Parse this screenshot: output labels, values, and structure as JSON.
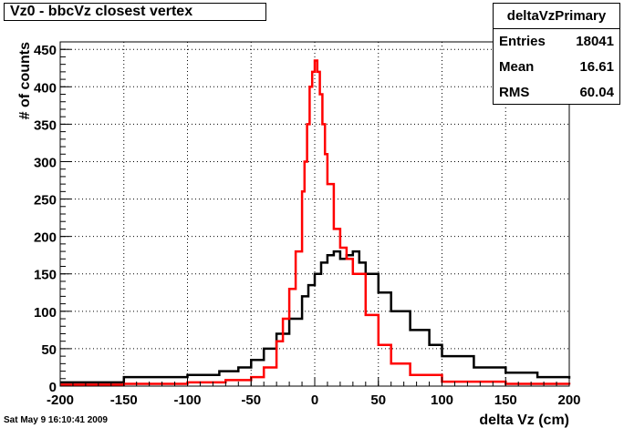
{
  "title": "Vz0 - bbcVz closest vertex",
  "stats": {
    "name": "deltaVzPrimary",
    "rows": [
      {
        "label": "Entries",
        "value": "18041"
      },
      {
        "label": "Mean",
        "value": "16.61"
      },
      {
        "label": "RMS",
        "value": "60.04"
      }
    ]
  },
  "timestamp": "Sat May  9 16:10:41 2009",
  "colors": {
    "series_red": "#ff0000",
    "series_black": "#000000",
    "grid": "#000000"
  },
  "chart_data": {
    "type": "line",
    "xlabel": "delta Vz (cm)",
    "ylabel": "# of counts",
    "xlim": [
      -200,
      200
    ],
    "ylim": [
      0,
      460
    ],
    "grid": true,
    "xticks": [
      -200,
      -150,
      -100,
      -50,
      0,
      50,
      100,
      150,
      200
    ],
    "yticks": [
      0,
      50,
      100,
      150,
      200,
      250,
      300,
      350,
      400,
      450
    ],
    "series": [
      {
        "color": "#ff0000",
        "x": [
          -200,
          -150,
          -100,
          -70,
          -50,
          -40,
          -30,
          -25,
          -20,
          -15,
          -10,
          -8,
          -6,
          -4,
          -2,
          0,
          2,
          4,
          6,
          8,
          10,
          15,
          20,
          25,
          30,
          40,
          50,
          60,
          75,
          100,
          150,
          200
        ],
        "values": [
          2,
          3,
          5,
          8,
          12,
          25,
          60,
          90,
          130,
          180,
          260,
          300,
          350,
          400,
          420,
          435,
          420,
          390,
          350,
          310,
          270,
          210,
          185,
          170,
          150,
          95,
          55,
          30,
          15,
          6,
          3,
          2
        ]
      },
      {
        "color": "#000000",
        "x": [
          -200,
          -150,
          -100,
          -75,
          -60,
          -50,
          -40,
          -30,
          -20,
          -10,
          -5,
          0,
          5,
          10,
          15,
          20,
          25,
          30,
          35,
          40,
          50,
          60,
          75,
          90,
          100,
          125,
          150,
          175,
          200
        ],
        "values": [
          5,
          12,
          15,
          20,
          25,
          35,
          50,
          70,
          90,
          120,
          135,
          150,
          165,
          175,
          180,
          170,
          175,
          180,
          165,
          150,
          125,
          100,
          75,
          55,
          40,
          25,
          18,
          12,
          10
        ]
      }
    ]
  }
}
